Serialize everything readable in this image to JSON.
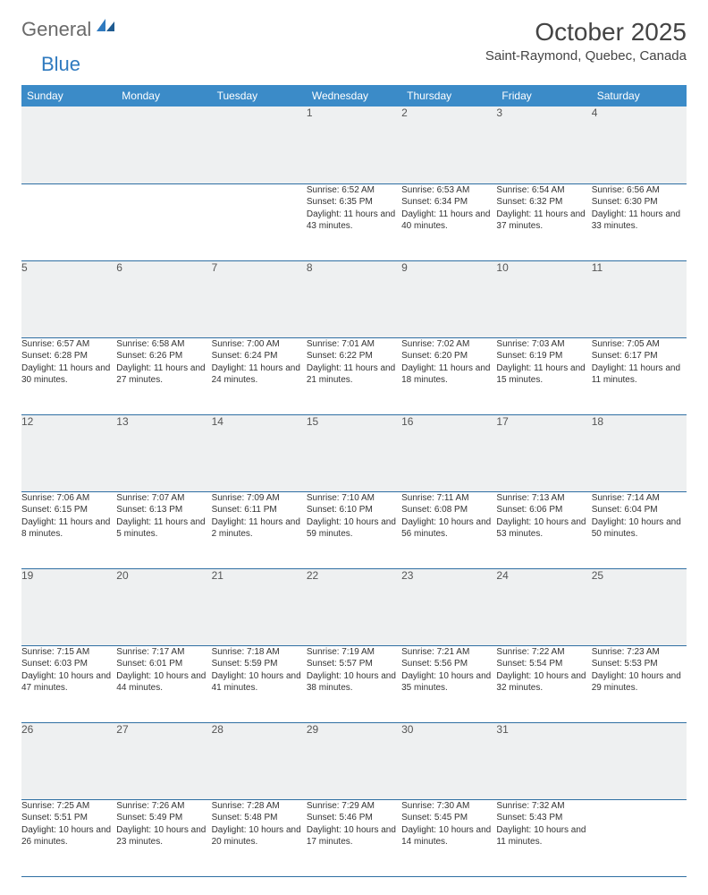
{
  "logo": {
    "general": "General",
    "blue": "Blue"
  },
  "title": "October 2025",
  "location": "Saint-Raymond, Quebec, Canada",
  "colors": {
    "header_bg": "#3b8bc8",
    "header_text": "#ffffff",
    "daynum_bg": "#eef0f1",
    "rule": "#2f6fa3",
    "body_text": "#333333",
    "logo_gray": "#6a6a6a",
    "logo_blue": "#2f7abf"
  },
  "weekdays": [
    "Sunday",
    "Monday",
    "Tuesday",
    "Wednesday",
    "Thursday",
    "Friday",
    "Saturday"
  ],
  "weeks": [
    [
      {
        "n": "",
        "sunrise": "",
        "sunset": "",
        "daylight": ""
      },
      {
        "n": "",
        "sunrise": "",
        "sunset": "",
        "daylight": ""
      },
      {
        "n": "",
        "sunrise": "",
        "sunset": "",
        "daylight": ""
      },
      {
        "n": "1",
        "sunrise": "Sunrise: 6:52 AM",
        "sunset": "Sunset: 6:35 PM",
        "daylight": "Daylight: 11 hours and 43 minutes."
      },
      {
        "n": "2",
        "sunrise": "Sunrise: 6:53 AM",
        "sunset": "Sunset: 6:34 PM",
        "daylight": "Daylight: 11 hours and 40 minutes."
      },
      {
        "n": "3",
        "sunrise": "Sunrise: 6:54 AM",
        "sunset": "Sunset: 6:32 PM",
        "daylight": "Daylight: 11 hours and 37 minutes."
      },
      {
        "n": "4",
        "sunrise": "Sunrise: 6:56 AM",
        "sunset": "Sunset: 6:30 PM",
        "daylight": "Daylight: 11 hours and 33 minutes."
      }
    ],
    [
      {
        "n": "5",
        "sunrise": "Sunrise: 6:57 AM",
        "sunset": "Sunset: 6:28 PM",
        "daylight": "Daylight: 11 hours and 30 minutes."
      },
      {
        "n": "6",
        "sunrise": "Sunrise: 6:58 AM",
        "sunset": "Sunset: 6:26 PM",
        "daylight": "Daylight: 11 hours and 27 minutes."
      },
      {
        "n": "7",
        "sunrise": "Sunrise: 7:00 AM",
        "sunset": "Sunset: 6:24 PM",
        "daylight": "Daylight: 11 hours and 24 minutes."
      },
      {
        "n": "8",
        "sunrise": "Sunrise: 7:01 AM",
        "sunset": "Sunset: 6:22 PM",
        "daylight": "Daylight: 11 hours and 21 minutes."
      },
      {
        "n": "9",
        "sunrise": "Sunrise: 7:02 AM",
        "sunset": "Sunset: 6:20 PM",
        "daylight": "Daylight: 11 hours and 18 minutes."
      },
      {
        "n": "10",
        "sunrise": "Sunrise: 7:03 AM",
        "sunset": "Sunset: 6:19 PM",
        "daylight": "Daylight: 11 hours and 15 minutes."
      },
      {
        "n": "11",
        "sunrise": "Sunrise: 7:05 AM",
        "sunset": "Sunset: 6:17 PM",
        "daylight": "Daylight: 11 hours and 11 minutes."
      }
    ],
    [
      {
        "n": "12",
        "sunrise": "Sunrise: 7:06 AM",
        "sunset": "Sunset: 6:15 PM",
        "daylight": "Daylight: 11 hours and 8 minutes."
      },
      {
        "n": "13",
        "sunrise": "Sunrise: 7:07 AM",
        "sunset": "Sunset: 6:13 PM",
        "daylight": "Daylight: 11 hours and 5 minutes."
      },
      {
        "n": "14",
        "sunrise": "Sunrise: 7:09 AM",
        "sunset": "Sunset: 6:11 PM",
        "daylight": "Daylight: 11 hours and 2 minutes."
      },
      {
        "n": "15",
        "sunrise": "Sunrise: 7:10 AM",
        "sunset": "Sunset: 6:10 PM",
        "daylight": "Daylight: 10 hours and 59 minutes."
      },
      {
        "n": "16",
        "sunrise": "Sunrise: 7:11 AM",
        "sunset": "Sunset: 6:08 PM",
        "daylight": "Daylight: 10 hours and 56 minutes."
      },
      {
        "n": "17",
        "sunrise": "Sunrise: 7:13 AM",
        "sunset": "Sunset: 6:06 PM",
        "daylight": "Daylight: 10 hours and 53 minutes."
      },
      {
        "n": "18",
        "sunrise": "Sunrise: 7:14 AM",
        "sunset": "Sunset: 6:04 PM",
        "daylight": "Daylight: 10 hours and 50 minutes."
      }
    ],
    [
      {
        "n": "19",
        "sunrise": "Sunrise: 7:15 AM",
        "sunset": "Sunset: 6:03 PM",
        "daylight": "Daylight: 10 hours and 47 minutes."
      },
      {
        "n": "20",
        "sunrise": "Sunrise: 7:17 AM",
        "sunset": "Sunset: 6:01 PM",
        "daylight": "Daylight: 10 hours and 44 minutes."
      },
      {
        "n": "21",
        "sunrise": "Sunrise: 7:18 AM",
        "sunset": "Sunset: 5:59 PM",
        "daylight": "Daylight: 10 hours and 41 minutes."
      },
      {
        "n": "22",
        "sunrise": "Sunrise: 7:19 AM",
        "sunset": "Sunset: 5:57 PM",
        "daylight": "Daylight: 10 hours and 38 minutes."
      },
      {
        "n": "23",
        "sunrise": "Sunrise: 7:21 AM",
        "sunset": "Sunset: 5:56 PM",
        "daylight": "Daylight: 10 hours and 35 minutes."
      },
      {
        "n": "24",
        "sunrise": "Sunrise: 7:22 AM",
        "sunset": "Sunset: 5:54 PM",
        "daylight": "Daylight: 10 hours and 32 minutes."
      },
      {
        "n": "25",
        "sunrise": "Sunrise: 7:23 AM",
        "sunset": "Sunset: 5:53 PM",
        "daylight": "Daylight: 10 hours and 29 minutes."
      }
    ],
    [
      {
        "n": "26",
        "sunrise": "Sunrise: 7:25 AM",
        "sunset": "Sunset: 5:51 PM",
        "daylight": "Daylight: 10 hours and 26 minutes."
      },
      {
        "n": "27",
        "sunrise": "Sunrise: 7:26 AM",
        "sunset": "Sunset: 5:49 PM",
        "daylight": "Daylight: 10 hours and 23 minutes."
      },
      {
        "n": "28",
        "sunrise": "Sunrise: 7:28 AM",
        "sunset": "Sunset: 5:48 PM",
        "daylight": "Daylight: 10 hours and 20 minutes."
      },
      {
        "n": "29",
        "sunrise": "Sunrise: 7:29 AM",
        "sunset": "Sunset: 5:46 PM",
        "daylight": "Daylight: 10 hours and 17 minutes."
      },
      {
        "n": "30",
        "sunrise": "Sunrise: 7:30 AM",
        "sunset": "Sunset: 5:45 PM",
        "daylight": "Daylight: 10 hours and 14 minutes."
      },
      {
        "n": "31",
        "sunrise": "Sunrise: 7:32 AM",
        "sunset": "Sunset: 5:43 PM",
        "daylight": "Daylight: 10 hours and 11 minutes."
      },
      {
        "n": "",
        "sunrise": "",
        "sunset": "",
        "daylight": ""
      }
    ]
  ]
}
